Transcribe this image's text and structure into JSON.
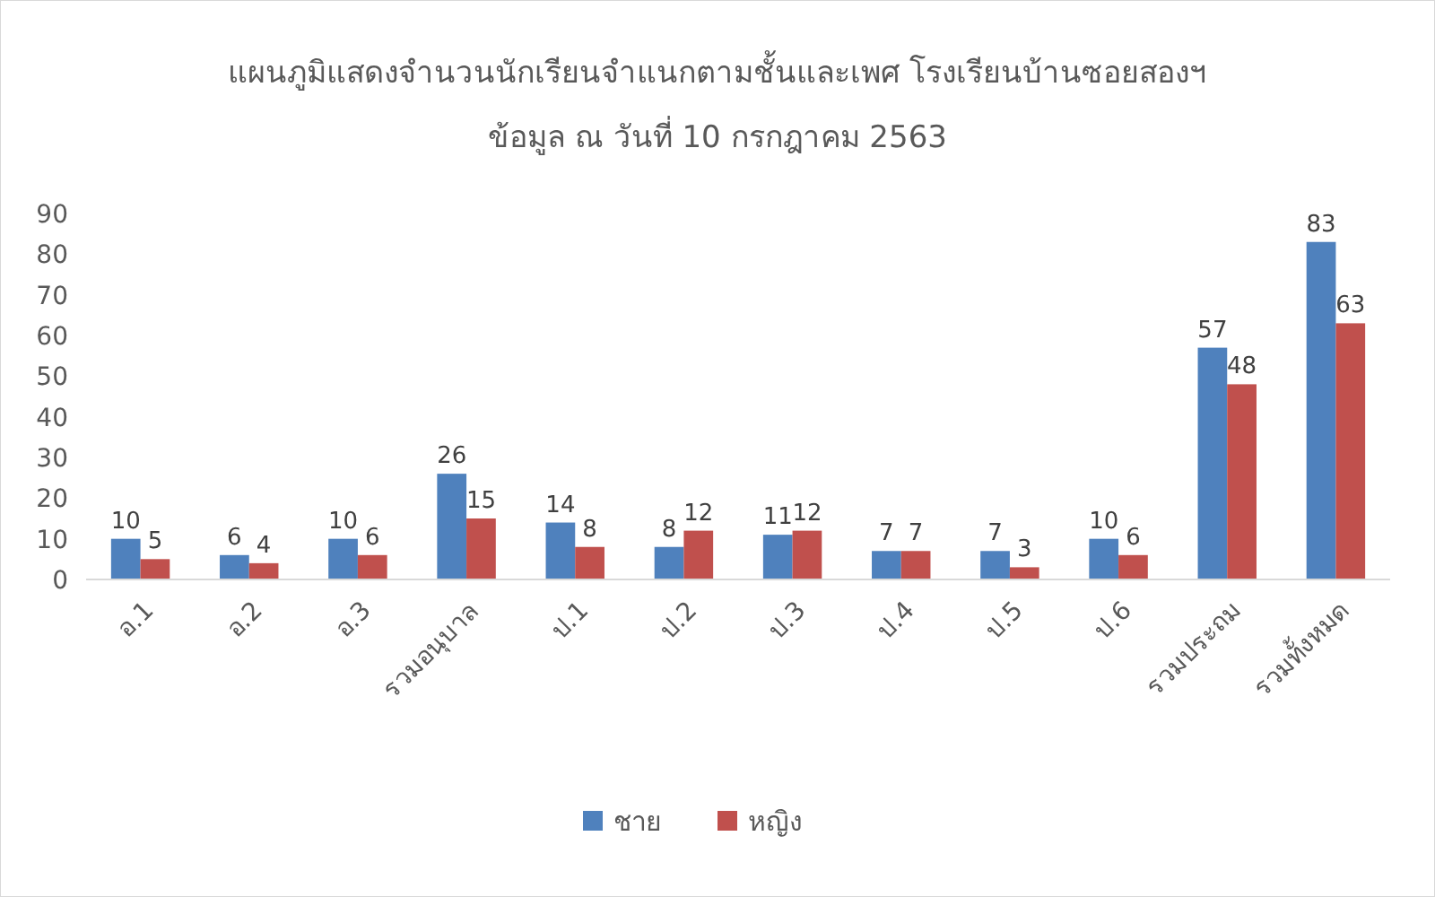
{
  "chart_data": {
    "type": "bar",
    "title": "แผนภูมิแสดงจำนวนนักเรียนจำแนกตามชั้นและเพศ  โรงเรียนบ้านซอยสองฯ",
    "subtitle": "ข้อมูล ณ วันที่ 10 กรกฎาคม  2563",
    "categories": [
      "อ.1",
      "อ.2",
      "อ.3",
      "รวมอนุบาล",
      "ป.1",
      "ป.2",
      "ป.3",
      "ป.4",
      "ป.5",
      "ป.6",
      "รวมประถม",
      "รวมทั้งหมด"
    ],
    "series": [
      {
        "name": "ชาย",
        "color": "#4f81bd",
        "values": [
          10,
          6,
          10,
          26,
          14,
          8,
          11,
          7,
          7,
          10,
          57,
          83
        ]
      },
      {
        "name": "หญิง",
        "color": "#c0504d",
        "values": [
          5,
          4,
          6,
          15,
          8,
          12,
          12,
          7,
          3,
          6,
          48,
          63
        ]
      }
    ],
    "ylim": [
      0,
      90
    ],
    "yticks": [
      0,
      10,
      20,
      30,
      40,
      50,
      60,
      70,
      80,
      90
    ],
    "grid": false,
    "legend": "bottom",
    "data_labels": true
  }
}
